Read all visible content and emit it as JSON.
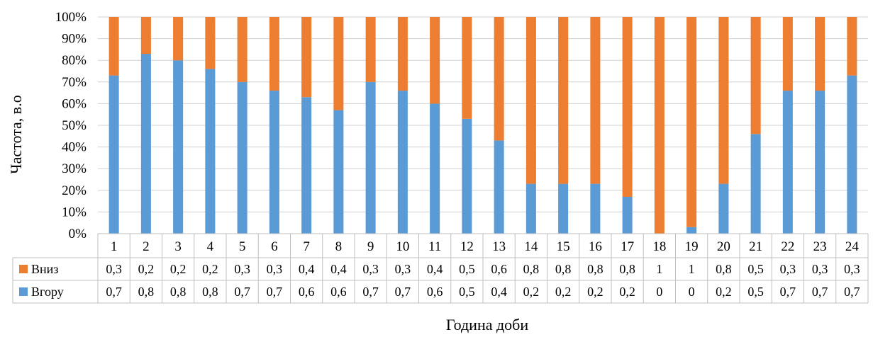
{
  "chart_data": {
    "type": "bar",
    "stacked": true,
    "percent_stacked": true,
    "xlabel": "Година доби",
    "ylabel": "Частота, в.о",
    "ylim": [
      0,
      100
    ],
    "y_ticks": [
      "0%",
      "10%",
      "20%",
      "30%",
      "40%",
      "50%",
      "60%",
      "70%",
      "80%",
      "90%",
      "100%"
    ],
    "categories": [
      "1",
      "2",
      "3",
      "4",
      "5",
      "6",
      "7",
      "8",
      "9",
      "10",
      "11",
      "12",
      "13",
      "14",
      "15",
      "16",
      "17",
      "18",
      "19",
      "20",
      "21",
      "22",
      "23",
      "24"
    ],
    "grid": true,
    "legend": "data table",
    "series": [
      {
        "name": "Вгору",
        "color": "#5b9bd5",
        "values": [
          73,
          83,
          80,
          76,
          70,
          66,
          63,
          57,
          70,
          66,
          60,
          53,
          43,
          23,
          23,
          23,
          17,
          0,
          3,
          23,
          46,
          66,
          66,
          73
        ],
        "table_labels": [
          "0,7",
          "0,8",
          "0,8",
          "0,8",
          "0,7",
          "0,7",
          "0,6",
          "0,6",
          "0,7",
          "0,7",
          "0,6",
          "0,5",
          "0,4",
          "0,2",
          "0,2",
          "0,2",
          "0,2",
          "0",
          "0",
          "0,2",
          "0,5",
          "0,7",
          "0,7",
          "0,7"
        ]
      },
      {
        "name": "Вниз",
        "color": "#ed7d31",
        "values": [
          27,
          17,
          20,
          24,
          30,
          34,
          37,
          43,
          30,
          34,
          40,
          47,
          57,
          77,
          77,
          77,
          83,
          100,
          97,
          77,
          54,
          34,
          34,
          27
        ],
        "table_labels": [
          "0,3",
          "0,2",
          "0,2",
          "0,2",
          "0,3",
          "0,3",
          "0,4",
          "0,4",
          "0,3",
          "0,3",
          "0,4",
          "0,5",
          "0,6",
          "0,8",
          "0,8",
          "0,8",
          "0,8",
          "1",
          "1",
          "0,8",
          "0,5",
          "0,3",
          "0,3",
          "0,3"
        ]
      }
    ]
  }
}
